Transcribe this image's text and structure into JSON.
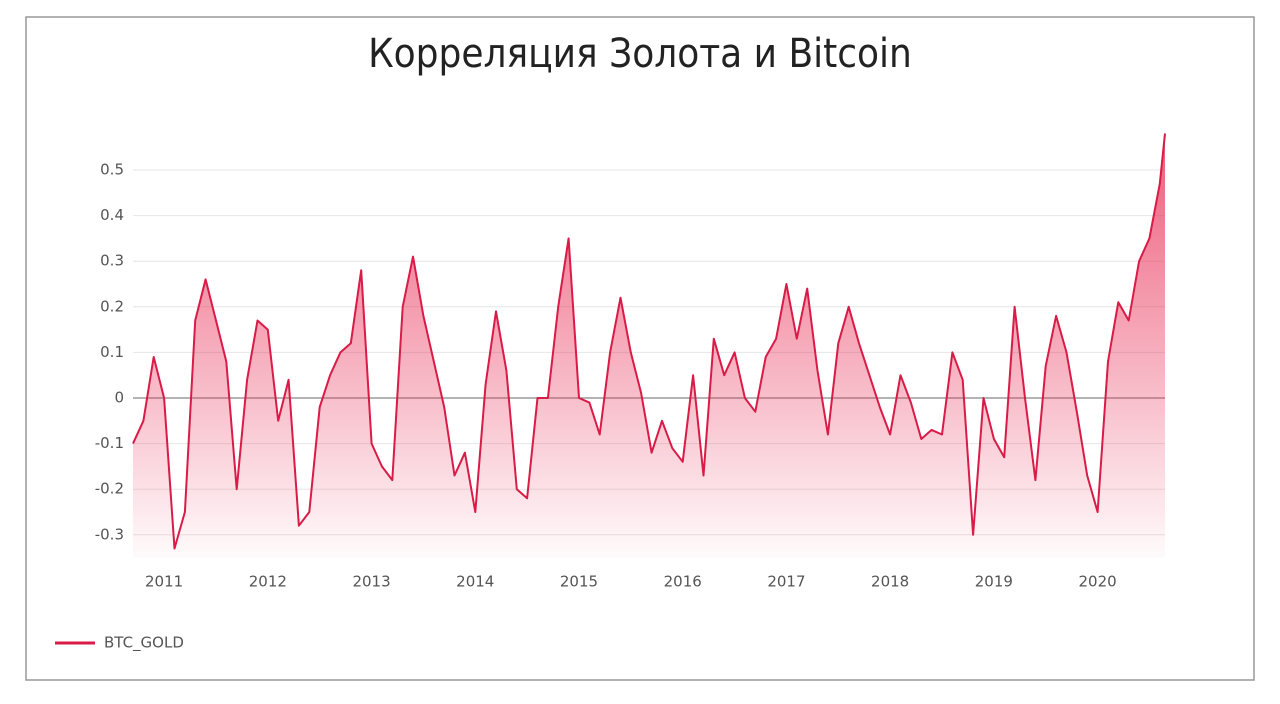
{
  "chart_data": {
    "type": "area",
    "title": "Корреляция Золота и Bitcoin",
    "x": [
      2010.7,
      2010.8,
      2010.9,
      2011.0,
      2011.1,
      2011.2,
      2011.3,
      2011.4,
      2011.5,
      2011.6,
      2011.7,
      2011.8,
      2011.9,
      2012.0,
      2012.1,
      2012.2,
      2012.3,
      2012.4,
      2012.5,
      2012.6,
      2012.7,
      2012.8,
      2012.9,
      2013.0,
      2013.1,
      2013.2,
      2013.3,
      2013.4,
      2013.5,
      2013.6,
      2013.7,
      2013.8,
      2013.9,
      2014.0,
      2014.1,
      2014.2,
      2014.3,
      2014.4,
      2014.5,
      2014.6,
      2014.7,
      2014.8,
      2014.9,
      2015.0,
      2015.1,
      2015.2,
      2015.3,
      2015.4,
      2015.5,
      2015.6,
      2015.7,
      2015.8,
      2015.9,
      2016.0,
      2016.1,
      2016.2,
      2016.3,
      2016.4,
      2016.5,
      2016.6,
      2016.7,
      2016.8,
      2016.9,
      2017.0,
      2017.1,
      2017.2,
      2017.3,
      2017.4,
      2017.5,
      2017.6,
      2017.7,
      2017.8,
      2017.9,
      2018.0,
      2018.1,
      2018.2,
      2018.3,
      2018.4,
      2018.5,
      2018.6,
      2018.7,
      2018.8,
      2018.9,
      2019.0,
      2019.1,
      2019.2,
      2019.3,
      2019.4,
      2019.5,
      2019.6,
      2019.7,
      2019.8,
      2019.9,
      2020.0,
      2020.1,
      2020.2,
      2020.3,
      2020.4,
      2020.5,
      2020.6,
      2020.65
    ],
    "series": [
      {
        "name": "BTC_GOLD",
        "color": "#d81b47",
        "values": [
          -0.1,
          -0.05,
          0.09,
          0.0,
          -0.33,
          -0.25,
          0.17,
          0.26,
          0.17,
          0.08,
          -0.2,
          0.04,
          0.17,
          0.15,
          -0.05,
          0.04,
          -0.28,
          -0.25,
          -0.02,
          0.05,
          0.1,
          0.12,
          0.28,
          -0.1,
          -0.15,
          -0.18,
          0.2,
          0.31,
          0.18,
          0.08,
          -0.02,
          -0.17,
          -0.12,
          -0.25,
          0.03,
          0.19,
          0.06,
          -0.2,
          -0.22,
          0.0,
          0.0,
          0.2,
          0.35,
          0.0,
          -0.01,
          -0.08,
          0.1,
          0.22,
          0.1,
          0.01,
          -0.12,
          -0.05,
          -0.11,
          -0.14,
          0.05,
          -0.17,
          0.13,
          0.05,
          0.1,
          0.0,
          -0.03,
          0.09,
          0.13,
          0.25,
          0.13,
          0.24,
          0.06,
          -0.08,
          0.12,
          0.2,
          0.12,
          0.05,
          -0.02,
          -0.08,
          0.05,
          -0.01,
          -0.09,
          -0.07,
          -0.08,
          0.1,
          0.04,
          -0.3,
          0.0,
          -0.09,
          -0.13,
          0.2,
          0.0,
          -0.18,
          0.07,
          0.18,
          0.1,
          -0.03,
          -0.17,
          -0.25,
          0.08,
          0.21,
          0.17,
          0.3,
          0.35,
          0.47,
          0.58
        ]
      }
    ],
    "xlim": [
      2010.7,
      2020.65
    ],
    "xticks": [
      2011,
      2012,
      2013,
      2014,
      2015,
      2016,
      2017,
      2018,
      2019,
      2020
    ],
    "ylim": [
      -0.35,
      0.6
    ],
    "yticks": [
      -0.3,
      -0.2,
      -0.1,
      0,
      0.1,
      0.2,
      0.3,
      0.4,
      0.5
    ],
    "grid": true
  }
}
